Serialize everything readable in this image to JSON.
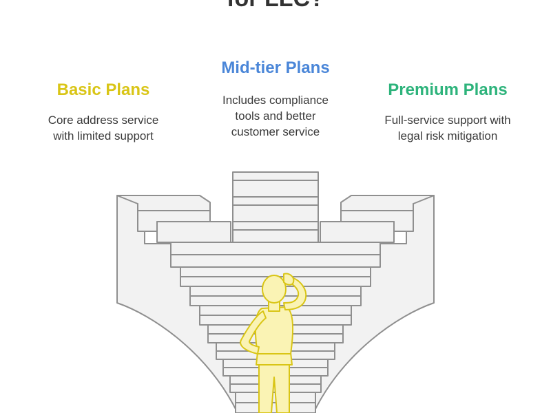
{
  "title": "for LLC?",
  "plans": [
    {
      "id": "basic",
      "heading": "Basic Plans",
      "description_lines": [
        "Core address service",
        "with limited support"
      ],
      "color": "#d9c516"
    },
    {
      "id": "mid",
      "heading": "Mid-tier Plans",
      "description_lines": [
        "Includes compliance",
        "tools and better",
        "customer service"
      ],
      "color": "#4a86d8"
    },
    {
      "id": "premium",
      "heading": "Premium Plans",
      "description_lines": [
        "Full-service support with",
        "legal risk mitigation"
      ],
      "color": "#2db37b"
    }
  ],
  "illustration": {
    "stair_fill": "#f2f2f2",
    "stair_stroke": "#8f8f8f",
    "person_fill": "#faf3b4",
    "person_stroke": "#d9c516",
    "person_pose": "thinking-scratching-head"
  }
}
